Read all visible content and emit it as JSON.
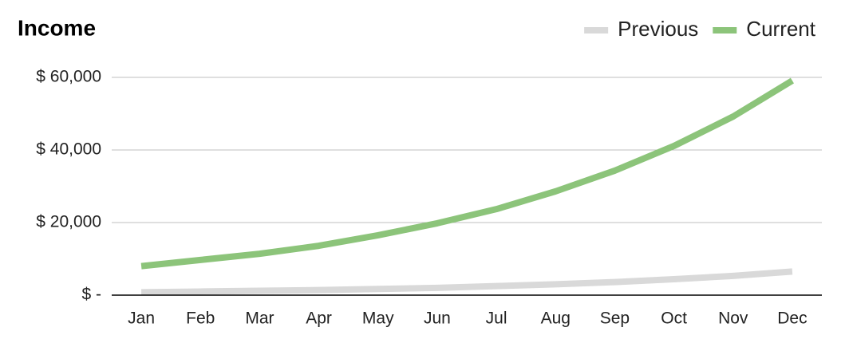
{
  "chart_data": {
    "type": "line",
    "title": "Income",
    "categories": [
      "Jan",
      "Feb",
      "Mar",
      "Apr",
      "May",
      "Jun",
      "Jul",
      "Aug",
      "Sep",
      "Oct",
      "Nov",
      "Dec"
    ],
    "series": [
      {
        "name": "Previous",
        "color": "#d9d9d9",
        "values": [
          800,
          1000,
          1200,
          1400,
          1700,
          2000,
          2500,
          3000,
          3600,
          4400,
          5300,
          6500
        ]
      },
      {
        "name": "Current",
        "color": "#8cc47a",
        "values": [
          8000,
          9700,
          11400,
          13600,
          16500,
          19800,
          23700,
          28600,
          34300,
          41100,
          49200,
          59100
        ]
      }
    ],
    "ylim": [
      0,
      60000
    ],
    "yticks": [
      {
        "value": 0,
        "label": "$ -"
      },
      {
        "value": 20000,
        "label": "$ 20,000"
      },
      {
        "value": 40000,
        "label": "$ 40,000"
      },
      {
        "value": 60000,
        "label": "$ 60,000"
      }
    ],
    "grid": true,
    "legend": "top-right"
  }
}
